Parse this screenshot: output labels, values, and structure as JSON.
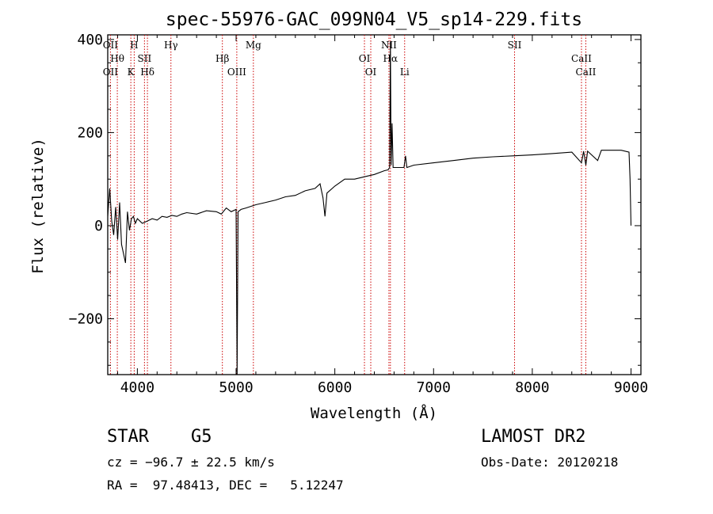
{
  "chart_data": {
    "type": "line",
    "title": "spec-55976-GAC_099N04_V5_sp14-229.fits",
    "xlabel": "Wavelength (Å)",
    "ylabel": "Flux (relative)",
    "xlim": [
      3700,
      9100
    ],
    "ylim": [
      -320,
      410
    ],
    "xticks": [
      4000,
      5000,
      6000,
      7000,
      8000,
      9000
    ],
    "yticks": [
      -200,
      0,
      200,
      400
    ],
    "grid": false,
    "series": [
      {
        "color": "#000000",
        "points": [
          [
            3700,
            20
          ],
          [
            3720,
            80
          ],
          [
            3740,
            10
          ],
          [
            3760,
            -20
          ],
          [
            3780,
            40
          ],
          [
            3800,
            -30
          ],
          [
            3820,
            50
          ],
          [
            3840,
            -40
          ],
          [
            3860,
            -60
          ],
          [
            3880,
            -80
          ],
          [
            3900,
            30
          ],
          [
            3920,
            -10
          ],
          [
            3940,
            15
          ],
          [
            3960,
            20
          ],
          [
            3980,
            5
          ],
          [
            4000,
            15
          ],
          [
            4050,
            5
          ],
          [
            4100,
            10
          ],
          [
            4150,
            15
          ],
          [
            4200,
            12
          ],
          [
            4250,
            20
          ],
          [
            4300,
            18
          ],
          [
            4350,
            22
          ],
          [
            4400,
            20
          ],
          [
            4450,
            25
          ],
          [
            4500,
            28
          ],
          [
            4600,
            25
          ],
          [
            4700,
            32
          ],
          [
            4800,
            30
          ],
          [
            4850,
            25
          ],
          [
            4900,
            38
          ],
          [
            4950,
            30
          ],
          [
            5000,
            35
          ],
          [
            5010,
            -320
          ],
          [
            5020,
            30
          ],
          [
            5050,
            35
          ],
          [
            5100,
            38
          ],
          [
            5200,
            45
          ],
          [
            5300,
            50
          ],
          [
            5400,
            55
          ],
          [
            5500,
            62
          ],
          [
            5600,
            65
          ],
          [
            5700,
            75
          ],
          [
            5800,
            80
          ],
          [
            5850,
            90
          ],
          [
            5880,
            60
          ],
          [
            5900,
            20
          ],
          [
            5920,
            70
          ],
          [
            6000,
            85
          ],
          [
            6100,
            100
          ],
          [
            6200,
            100
          ],
          [
            6300,
            105
          ],
          [
            6400,
            110
          ],
          [
            6500,
            118
          ],
          [
            6540,
            120
          ],
          [
            6555,
            125
          ],
          [
            6563,
            395
          ],
          [
            6570,
            130
          ],
          [
            6580,
            220
          ],
          [
            6590,
            125
          ],
          [
            6600,
            125
          ],
          [
            6650,
            125
          ],
          [
            6700,
            125
          ],
          [
            6716,
            150
          ],
          [
            6730,
            125
          ],
          [
            6800,
            130
          ],
          [
            7000,
            135
          ],
          [
            7200,
            140
          ],
          [
            7400,
            145
          ],
          [
            7600,
            148
          ],
          [
            7800,
            150
          ],
          [
            8000,
            152
          ],
          [
            8200,
            155
          ],
          [
            8400,
            158
          ],
          [
            8498,
            135
          ],
          [
            8520,
            160
          ],
          [
            8542,
            130
          ],
          [
            8560,
            160
          ],
          [
            8662,
            140
          ],
          [
            8700,
            162
          ],
          [
            8800,
            162
          ],
          [
            8900,
            162
          ],
          [
            8980,
            158
          ],
          [
            8990,
            100
          ],
          [
            9000,
            0
          ]
        ]
      }
    ],
    "line_markers": [
      {
        "wavelength": 3727,
        "top": "OII",
        "bottom": "OII"
      },
      {
        "wavelength": 3797,
        "top": "Hθ",
        "bottom": ""
      },
      {
        "wavelength": 3934,
        "top": "K",
        "bottom": ""
      },
      {
        "wavelength": 3968,
        "top": "H",
        "bottom": ""
      },
      {
        "wavelength": 4072,
        "top": "SII",
        "bottom": ""
      },
      {
        "wavelength": 4102,
        "top": "Hδ",
        "bottom": ""
      },
      {
        "wavelength": 4340,
        "top": "Hγ",
        "bottom": ""
      },
      {
        "wavelength": 4861,
        "top": "Hβ",
        "bottom": ""
      },
      {
        "wavelength": 5007,
        "top": "OIII",
        "bottom": ""
      },
      {
        "wavelength": 5175,
        "top": "Mg",
        "bottom": ""
      },
      {
        "wavelength": 6300,
        "top": "OI",
        "bottom": ""
      },
      {
        "wavelength": 6364,
        "top": "OI",
        "bottom": ""
      },
      {
        "wavelength": 6548,
        "top": "NII",
        "bottom": ""
      },
      {
        "wavelength": 6563,
        "top": "Hα",
        "bottom": ""
      },
      {
        "wavelength": 6707,
        "top": "Li",
        "bottom": ""
      },
      {
        "wavelength": 7820,
        "top": "SII",
        "bottom": ""
      },
      {
        "wavelength": 8498,
        "top": "CaII",
        "bottom": ""
      },
      {
        "wavelength": 8542,
        "top": "CaII",
        "bottom": ""
      }
    ],
    "marker_color": "#cc0000"
  },
  "info": {
    "object": "STAR    G5",
    "survey": "LAMOST DR2",
    "cz": "cz = −96.7 ± 22.5 km/s",
    "obs_date": "Obs-Date: 20120218",
    "coords": "RA =  97.48413, DEC =   5.12247"
  }
}
